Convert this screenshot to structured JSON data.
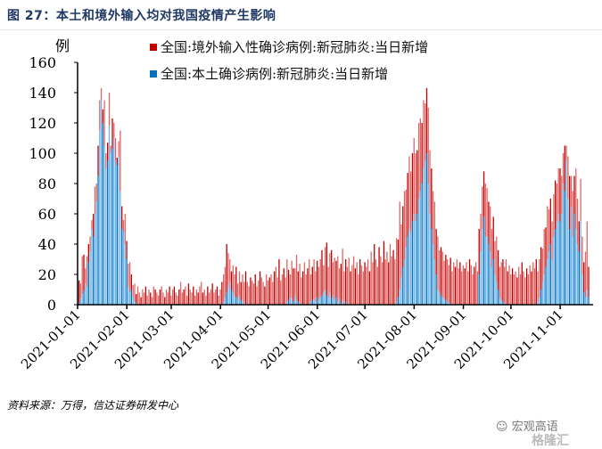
{
  "title": "图 27：本土和境外输入均对我国疫情产生影响",
  "source": "资料来源：万得，信达证券研发中心",
  "watermark": {
    "text": "宏观高语",
    "brand": "格隆汇"
  },
  "colors": {
    "imported": "#e06666",
    "imported_dark": "#c00000",
    "local": "#6fb3e6",
    "local_dark": "#0070c0",
    "title": "#1f3864"
  },
  "chart_data": {
    "type": "bar",
    "stacked": true,
    "title": "图 27：本土和境外输入均对我国疫情产生影响",
    "ylabel": "例",
    "xlabel": "",
    "ylim": [
      0,
      160
    ],
    "yticks": [
      "0",
      "20",
      "40",
      "60",
      "80",
      "100",
      "120",
      "140",
      "160"
    ],
    "start_date": "2021-01-01",
    "end_date": "2021-11-18",
    "xticks": [
      "2021-01-01",
      "2021-02-01",
      "2021-03-01",
      "2021-04-01",
      "2021-05-01",
      "2021-06-01",
      "2021-07-01",
      "2021-08-01",
      "2021-09-01",
      "2021-10-01",
      "2021-11-01"
    ],
    "xtick_days": [
      0,
      31,
      59,
      90,
      120,
      151,
      181,
      212,
      243,
      273,
      304
    ],
    "legend_position": "top",
    "series": [
      {
        "name": "全国:境外输入性确诊病例:新冠肺炎:当日新增",
        "values": [
          15,
          10,
          25,
          24,
          10,
          20,
          12,
          10,
          6,
          15,
          18,
          12,
          20,
          20,
          8,
          9,
          30,
          10,
          12,
          22,
          5,
          20,
          10,
          15,
          5,
          10,
          40,
          15,
          8,
          20,
          12,
          15,
          20,
          10,
          8,
          12,
          6,
          12,
          8,
          5,
          10,
          8,
          12,
          6,
          10,
          8,
          5,
          12,
          10,
          8,
          6,
          10,
          12,
          8,
          5,
          10,
          8,
          12,
          6,
          10,
          12,
          8,
          6,
          10,
          15,
          8,
          10,
          12,
          6,
          14,
          10,
          8,
          12,
          6,
          10,
          8,
          12,
          15,
          8,
          10,
          6,
          12,
          8,
          10,
          14,
          8,
          10,
          12,
          6,
          10,
          15,
          18,
          20,
          32,
          22,
          15,
          12,
          18,
          14,
          20,
          10,
          16,
          12,
          18,
          14,
          22,
          15,
          12,
          18,
          16,
          14,
          20,
          12,
          16,
          22,
          18,
          15,
          12,
          20,
          16,
          18,
          20,
          15,
          22,
          25,
          18,
          30,
          16,
          20,
          24,
          18,
          28,
          20,
          15,
          25,
          22,
          18,
          30,
          20,
          26,
          18,
          22,
          28,
          20,
          24,
          30,
          18,
          22,
          26,
          20,
          24,
          22,
          25,
          30,
          18,
          28,
          35,
          20,
          26,
          32,
          22,
          28,
          24,
          30,
          20,
          26,
          34,
          22,
          28,
          25,
          30,
          22,
          26,
          32,
          24,
          28,
          20,
          30,
          26,
          22,
          28,
          25,
          30,
          22,
          35,
          28,
          40,
          30,
          25,
          38,
          32,
          28,
          42,
          30,
          35,
          28,
          40,
          32,
          36,
          30,
          42,
          38,
          58,
          35,
          40,
          45,
          38,
          42,
          48,
          40,
          45,
          50,
          45,
          42,
          50,
          48,
          40,
          45,
          38,
          43,
          50,
          42,
          40,
          35,
          38,
          30,
          35,
          28,
          32,
          30,
          25,
          30,
          28,
          25,
          30,
          22,
          28,
          25,
          30,
          24,
          28,
          22,
          26,
          24,
          28,
          22,
          30,
          26,
          20,
          25,
          28,
          22,
          30,
          25,
          28,
          30,
          35,
          32,
          28,
          30,
          25,
          28,
          22,
          30,
          26,
          20,
          25,
          28,
          24,
          30,
          22,
          26,
          20,
          24,
          20,
          22,
          18,
          25,
          20,
          28,
          22,
          18,
          24,
          20,
          26,
          22,
          28,
          24,
          30,
          20,
          25,
          28,
          22,
          30,
          26,
          35,
          28,
          30,
          25,
          28,
          32,
          25,
          30,
          35,
          25,
          20,
          30,
          10,
          28,
          35,
          20,
          30,
          25,
          40,
          30,
          20,
          28,
          25,
          20,
          30,
          45,
          20
        ]
      },
      {
        "name": "全国:本土确诊病例:新冠肺炎:当日新增",
        "values": [
          1,
          4,
          7,
          9,
          14,
          12,
          28,
          35,
          50,
          45,
          60,
          68,
          85,
          115,
          135,
          120,
          105,
          90,
          95,
          118,
          100,
          103,
          110,
          95,
          92,
          98,
          75,
          50,
          48,
          40,
          30,
          12,
          8,
          10,
          5,
          2,
          1,
          0,
          0,
          0,
          0,
          0,
          0,
          0,
          0,
          0,
          0,
          0,
          0,
          0,
          0,
          0,
          0,
          0,
          0,
          0,
          0,
          0,
          0,
          0,
          0,
          0,
          0,
          0,
          0,
          0,
          0,
          0,
          0,
          0,
          0,
          0,
          0,
          0,
          0,
          0,
          0,
          0,
          0,
          0,
          0,
          0,
          0,
          0,
          0,
          0,
          0,
          0,
          0,
          0,
          0,
          2,
          5,
          8,
          12,
          15,
          10,
          8,
          6,
          5,
          4,
          6,
          3,
          2,
          1,
          0,
          0,
          0,
          0,
          0,
          0,
          0,
          0,
          0,
          0,
          0,
          0,
          0,
          0,
          0,
          0,
          0,
          0,
          0,
          0,
          0,
          0,
          0,
          0,
          0,
          0,
          2,
          3,
          5,
          4,
          2,
          6,
          3,
          2,
          1,
          0,
          0,
          0,
          0,
          0,
          0,
          2,
          3,
          4,
          2,
          5,
          3,
          5,
          6,
          8,
          10,
          6,
          5,
          8,
          4,
          6,
          3,
          5,
          2,
          4,
          1,
          3,
          0,
          2,
          0,
          1,
          0,
          0,
          0,
          0,
          0,
          0,
          0,
          0,
          0,
          0,
          0,
          0,
          0,
          0,
          0,
          0,
          0,
          0,
          0,
          0,
          0,
          0,
          0,
          0,
          0,
          0,
          0,
          0,
          0,
          2,
          5,
          10,
          18,
          25,
          30,
          38,
          45,
          50,
          48,
          55,
          60,
          55,
          60,
          70,
          75,
          80,
          90,
          95,
          100,
          80,
          60,
          50,
          40,
          30,
          20,
          10,
          8,
          6,
          5,
          4,
          3,
          2,
          1,
          1,
          0,
          0,
          0,
          0,
          0,
          0,
          0,
          0,
          0,
          0,
          0,
          0,
          0,
          0,
          0,
          0,
          0,
          20,
          35,
          50,
          58,
          45,
          45,
          40,
          35,
          25,
          30,
          20,
          15,
          10,
          5,
          3,
          2,
          1,
          0,
          0,
          0,
          0,
          0,
          0,
          0,
          0,
          0,
          0,
          0,
          0,
          0,
          0,
          0,
          0,
          0,
          0,
          0,
          0,
          2,
          5,
          10,
          15,
          20,
          25,
          30,
          35,
          40,
          30,
          45,
          50,
          55,
          60,
          55,
          60,
          80,
          75,
          95,
          70,
          50,
          65,
          45,
          60,
          50,
          40,
          35,
          55,
          20,
          8,
          5,
          10,
          5
        ]
      }
    ]
  }
}
